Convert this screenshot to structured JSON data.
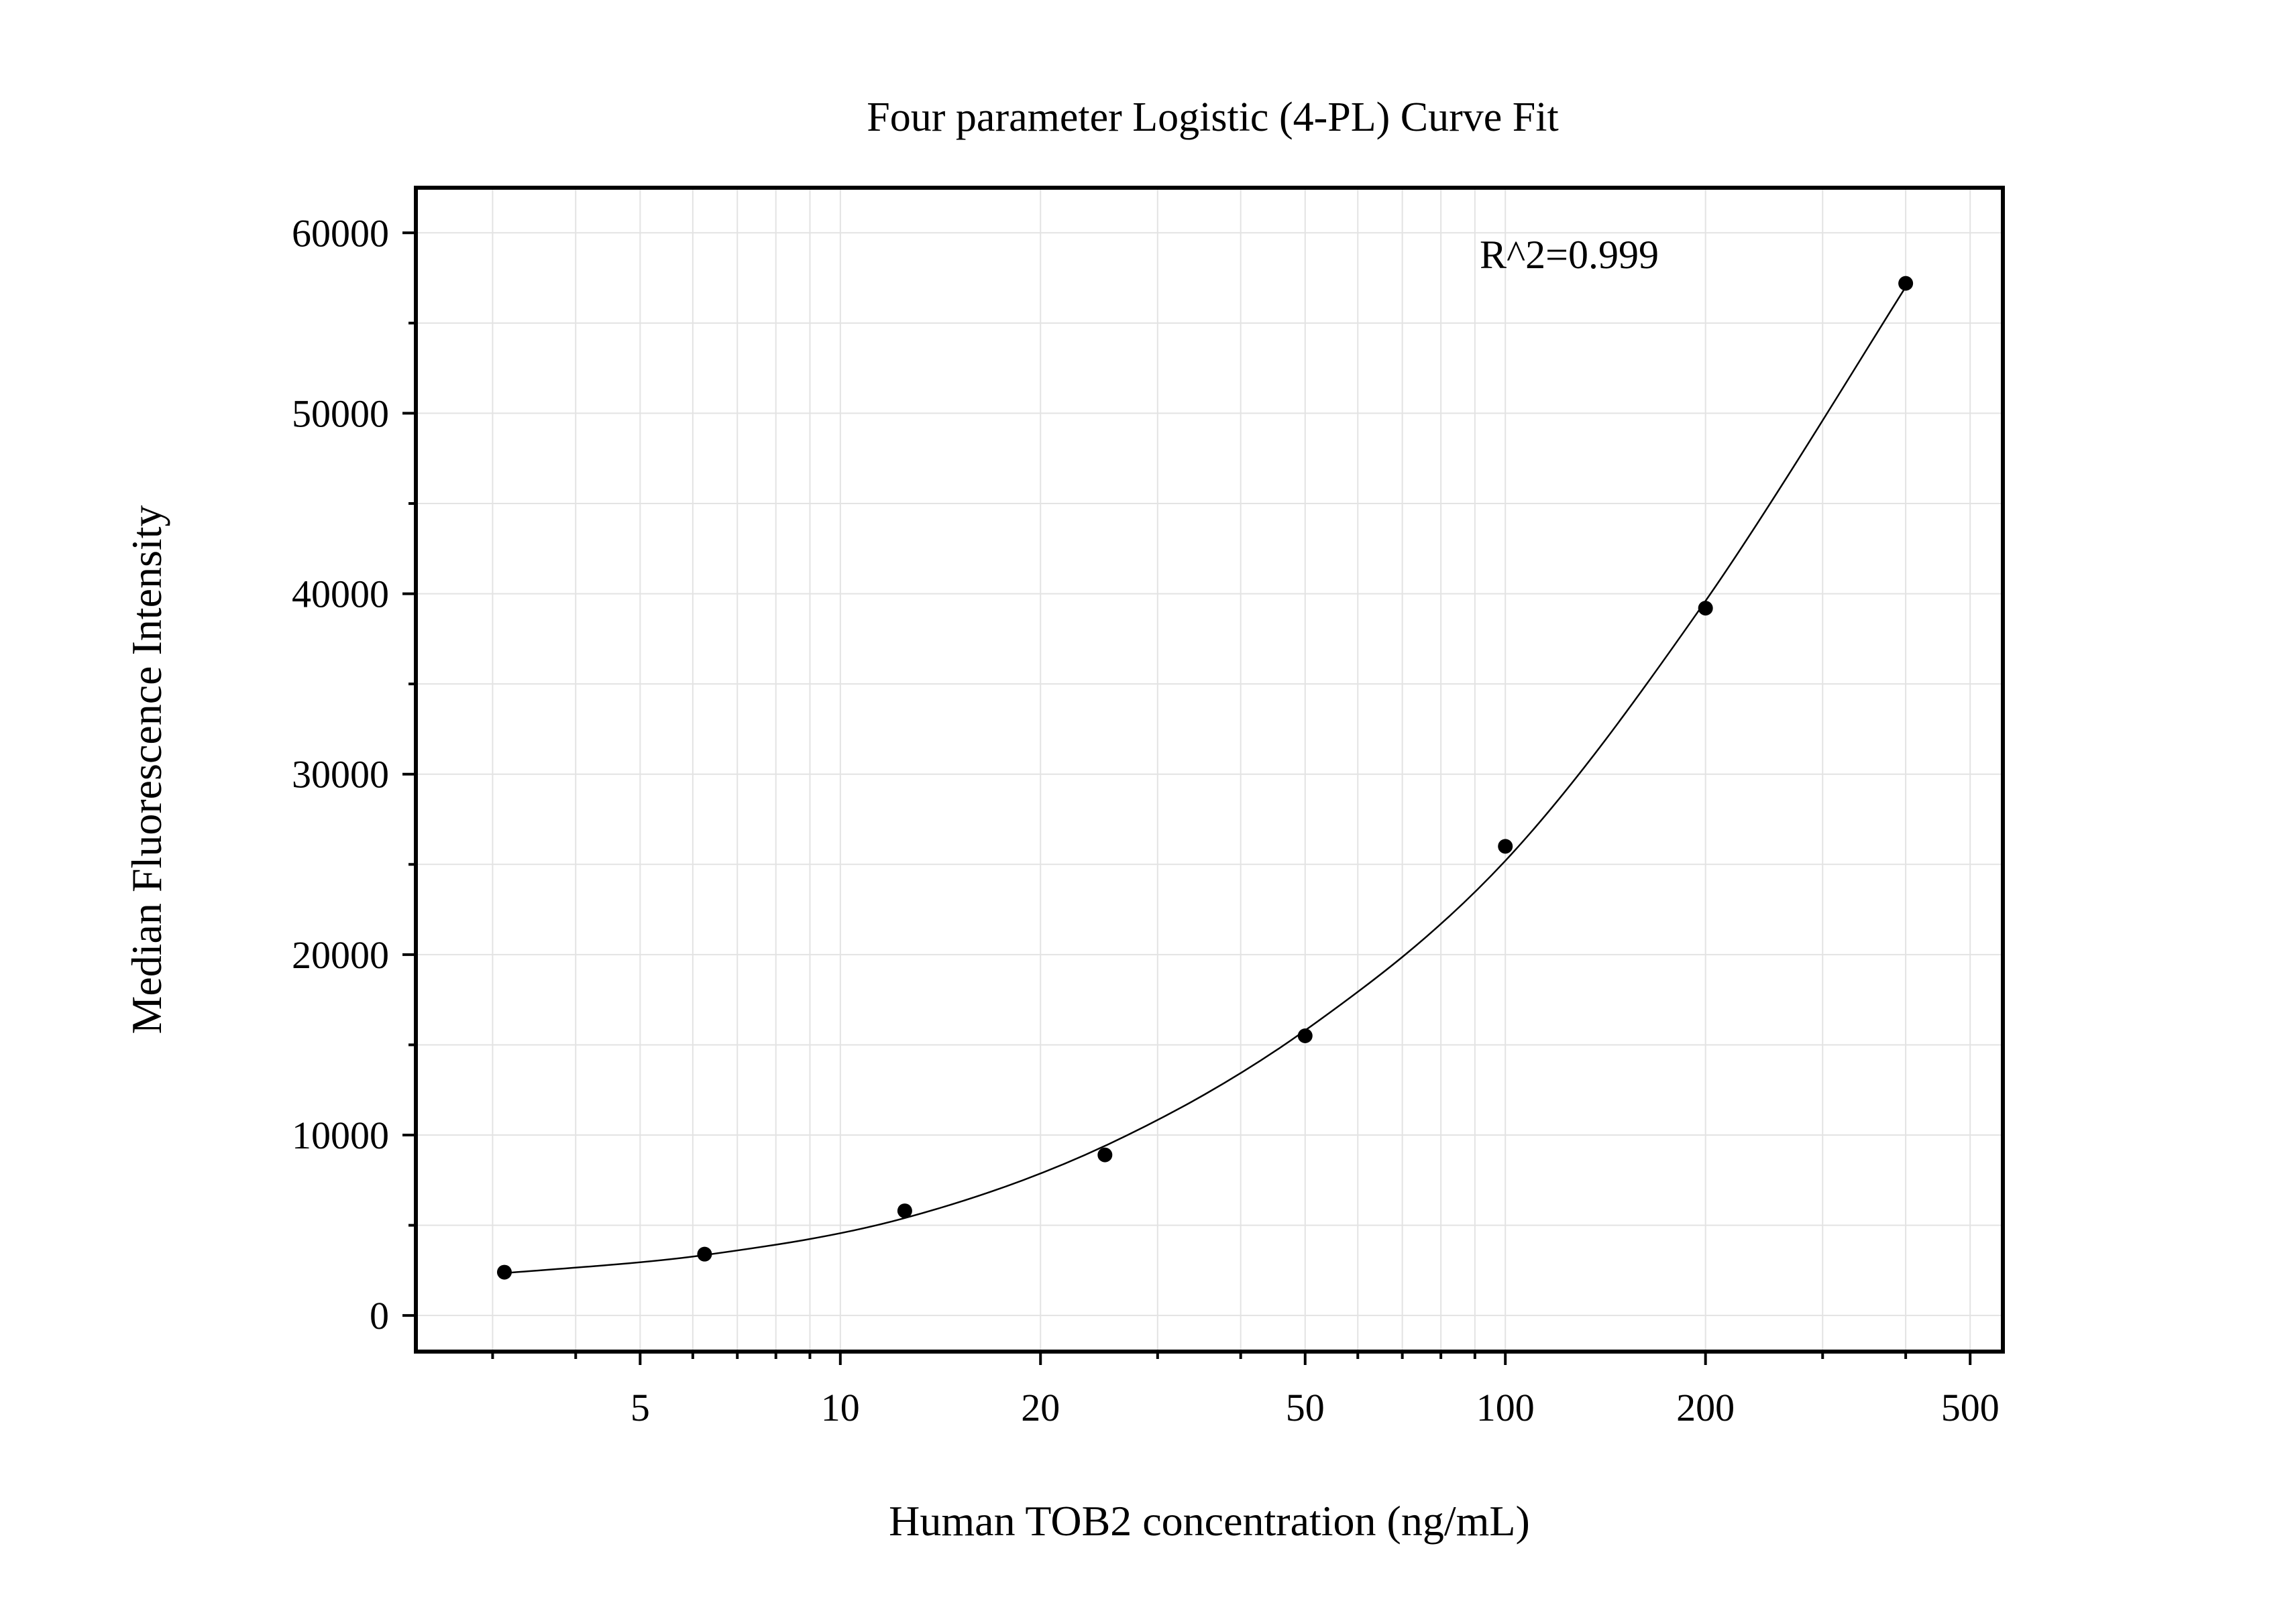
{
  "chart_data": {
    "type": "scatter",
    "title": "Four parameter Logistic (4-PL) Curve Fit",
    "xlabel": "Human TOB2 concentration (ng/mL)",
    "ylabel": "Median Fluorescence Intensity",
    "x_scale": "log",
    "xlim": [
      2.3,
      560
    ],
    "ylim": [
      -2000,
      62500
    ],
    "x_ticks": [
      {
        "value": 5,
        "label": "5"
      },
      {
        "value": 10,
        "label": "10"
      },
      {
        "value": 20,
        "label": "20"
      },
      {
        "value": 50,
        "label": "50"
      },
      {
        "value": 100,
        "label": "100"
      },
      {
        "value": 200,
        "label": "200"
      },
      {
        "value": 500,
        "label": "500"
      }
    ],
    "x_minor_ticks": [
      3,
      4,
      6,
      7,
      8,
      9,
      30,
      40,
      60,
      70,
      80,
      90,
      300,
      400
    ],
    "y_ticks": [
      {
        "value": 0,
        "label": "0"
      },
      {
        "value": 10000,
        "label": "10000"
      },
      {
        "value": 20000,
        "label": "20000"
      },
      {
        "value": 30000,
        "label": "30000"
      },
      {
        "value": 40000,
        "label": "40000"
      },
      {
        "value": 50000,
        "label": "50000"
      },
      {
        "value": 60000,
        "label": "60000"
      }
    ],
    "y_minor_ticks": [
      5000,
      15000,
      25000,
      35000,
      45000,
      55000
    ],
    "grid": true,
    "annotation": "R^2=0.999",
    "series": [
      {
        "points": [
          {
            "x": 3.125,
            "y": 2400
          },
          {
            "x": 6.25,
            "y": 3400
          },
          {
            "x": 12.5,
            "y": 5800
          },
          {
            "x": 25,
            "y": 8900
          },
          {
            "x": 50,
            "y": 15500
          },
          {
            "x": 100,
            "y": 26000
          },
          {
            "x": 200,
            "y": 39200
          },
          {
            "x": 400,
            "y": 57200
          }
        ]
      }
    ],
    "fit_curve": {
      "model": "4-PL",
      "points": [
        {
          "x": 3.125,
          "y": 2350
        },
        {
          "x": 6.25,
          "y": 3350
        },
        {
          "x": 12.5,
          "y": 5400
        },
        {
          "x": 25,
          "y": 9400
        },
        {
          "x": 50,
          "y": 15800
        },
        {
          "x": 100,
          "y": 25200
        },
        {
          "x": 200,
          "y": 39600
        },
        {
          "x": 400,
          "y": 57000
        }
      ]
    },
    "colors": {
      "points": "#000000",
      "curve": "#000000",
      "grid": "#e3e3e3",
      "frame": "#000000"
    }
  }
}
